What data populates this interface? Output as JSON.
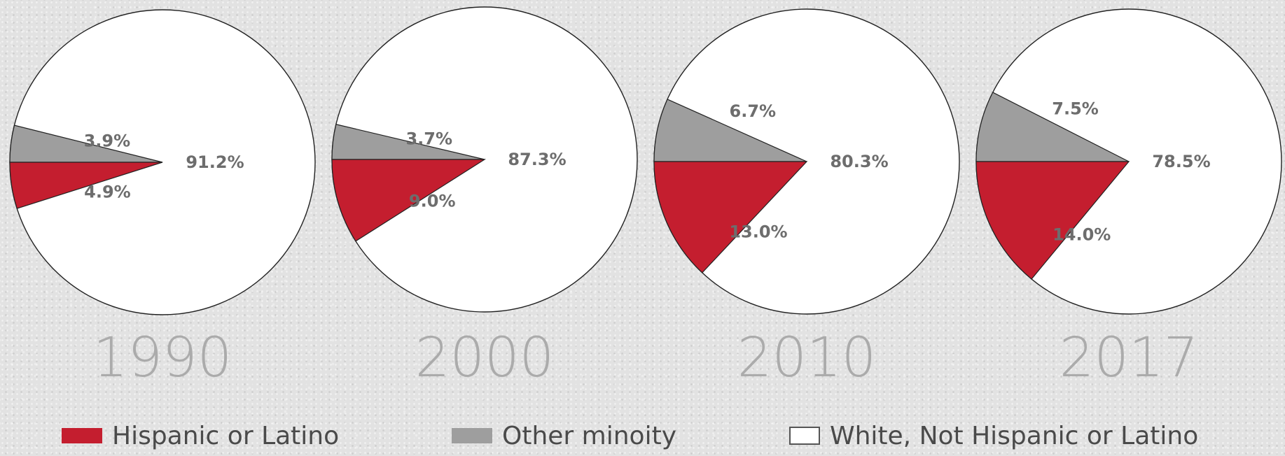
{
  "chart_data": [
    {
      "type": "pie",
      "year": "1990",
      "slices": [
        {
          "name": "Hispanic or Latino",
          "value": 4.9,
          "label": "4.9%",
          "color": "#c41e2f"
        },
        {
          "name": "Other minoity",
          "value": 3.9,
          "label": "3.9%",
          "color": "#9e9e9e"
        },
        {
          "name": "White, Not Hispanic or Latino",
          "value": 91.2,
          "label": "91.2%",
          "color": "#ffffff"
        }
      ]
    },
    {
      "type": "pie",
      "year": "2000",
      "slices": [
        {
          "name": "Hispanic or Latino",
          "value": 9.0,
          "label": "9.0%",
          "color": "#c41e2f"
        },
        {
          "name": "Other minoity",
          "value": 3.7,
          "label": "3.7%",
          "color": "#9e9e9e"
        },
        {
          "name": "White, Not Hispanic or Latino",
          "value": 87.3,
          "label": "87.3%",
          "color": "#ffffff"
        }
      ]
    },
    {
      "type": "pie",
      "year": "2010",
      "slices": [
        {
          "name": "Hispanic or Latino",
          "value": 13.0,
          "label": "13.0%",
          "color": "#c41e2f"
        },
        {
          "name": "Other minoity",
          "value": 6.7,
          "label": "6.7%",
          "color": "#9e9e9e"
        },
        {
          "name": "White, Not Hispanic or Latino",
          "value": 80.3,
          "label": "80.3%",
          "color": "#ffffff"
        }
      ]
    },
    {
      "type": "pie",
      "year": "2017",
      "slices": [
        {
          "name": "Hispanic or Latino",
          "value": 14.0,
          "label": "14.0%",
          "color": "#c41e2f"
        },
        {
          "name": "Other minoity",
          "value": 7.5,
          "label": "7.5%",
          "color": "#9e9e9e"
        },
        {
          "name": "White, Not Hispanic or Latino",
          "value": 78.5,
          "label": "78.5%",
          "color": "#ffffff"
        }
      ]
    }
  ],
  "legend": [
    {
      "label": "Hispanic or Latino",
      "color": "#c41e2f"
    },
    {
      "label": "Other minoity",
      "color": "#9e9e9e"
    },
    {
      "label": "White, Not Hispanic or Latino",
      "color": "#ffffff"
    }
  ]
}
